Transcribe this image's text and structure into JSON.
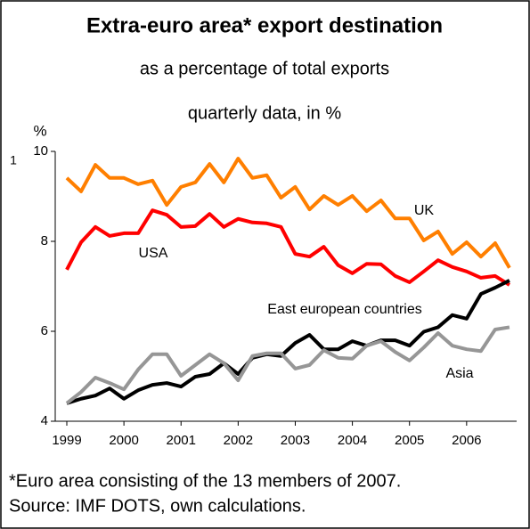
{
  "chart_data": {
    "type": "line",
    "title": "Extra-euro area* export destination",
    "subtitle": [
      "as a percentage of total exports",
      "quarterly data, in %"
    ],
    "y_axis_label": "%",
    "stray_label": "1",
    "footnotes": [
      "*Euro area consisting of the 13 members of 2007.",
      "Source: IMF DOTS, own calculations."
    ],
    "categories": [
      "1999",
      null,
      null,
      null,
      "2000",
      null,
      null,
      null,
      "2001",
      null,
      null,
      null,
      "2002",
      null,
      null,
      null,
      "2003",
      null,
      null,
      null,
      "2004",
      null,
      null,
      null,
      "2005",
      null,
      null,
      null,
      "2006",
      null,
      null,
      null
    ],
    "ylim": [
      4,
      10
    ],
    "yticks": [
      4,
      6,
      8,
      10
    ],
    "series": [
      {
        "name": "UK",
        "color": "#ff7f00",
        "values": [
          9.41,
          9.11,
          9.7,
          9.41,
          9.41,
          9.27,
          9.35,
          8.81,
          9.21,
          9.31,
          9.72,
          9.31,
          9.84,
          9.41,
          9.47,
          8.97,
          9.21,
          8.71,
          9.01,
          8.81,
          9.01,
          8.67,
          8.91,
          8.51,
          8.51,
          8.02,
          8.22,
          7.72,
          7.98,
          7.66,
          7.96,
          7.41
        ]
      },
      {
        "name": "USA",
        "color": "#ff0000",
        "values": [
          7.37,
          7.98,
          8.32,
          8.12,
          8.18,
          8.18,
          8.69,
          8.59,
          8.32,
          8.34,
          8.61,
          8.32,
          8.5,
          8.42,
          8.4,
          8.32,
          7.72,
          7.66,
          7.88,
          7.47,
          7.29,
          7.5,
          7.49,
          7.23,
          7.09,
          7.33,
          7.58,
          7.43,
          7.33,
          7.19,
          7.23,
          7.03
        ]
      },
      {
        "name": "East european countries",
        "color": "#000000",
        "values": [
          4.4,
          4.5,
          4.57,
          4.73,
          4.5,
          4.69,
          4.81,
          4.85,
          4.77,
          4.99,
          5.05,
          5.29,
          5.05,
          5.41,
          5.49,
          5.45,
          5.74,
          5.92,
          5.6,
          5.6,
          5.78,
          5.68,
          5.8,
          5.8,
          5.68,
          5.99,
          6.09,
          6.36,
          6.28,
          6.83,
          6.97,
          7.13
        ]
      },
      {
        "name": "Asia",
        "color": "#969696",
        "values": [
          4.4,
          4.65,
          4.97,
          4.85,
          4.71,
          5.15,
          5.49,
          5.49,
          5.01,
          5.25,
          5.49,
          5.29,
          4.91,
          5.45,
          5.51,
          5.51,
          5.17,
          5.25,
          5.58,
          5.41,
          5.39,
          5.68,
          5.78,
          5.54,
          5.35,
          5.64,
          5.96,
          5.68,
          5.6,
          5.56,
          6.04,
          6.09
        ]
      }
    ]
  }
}
